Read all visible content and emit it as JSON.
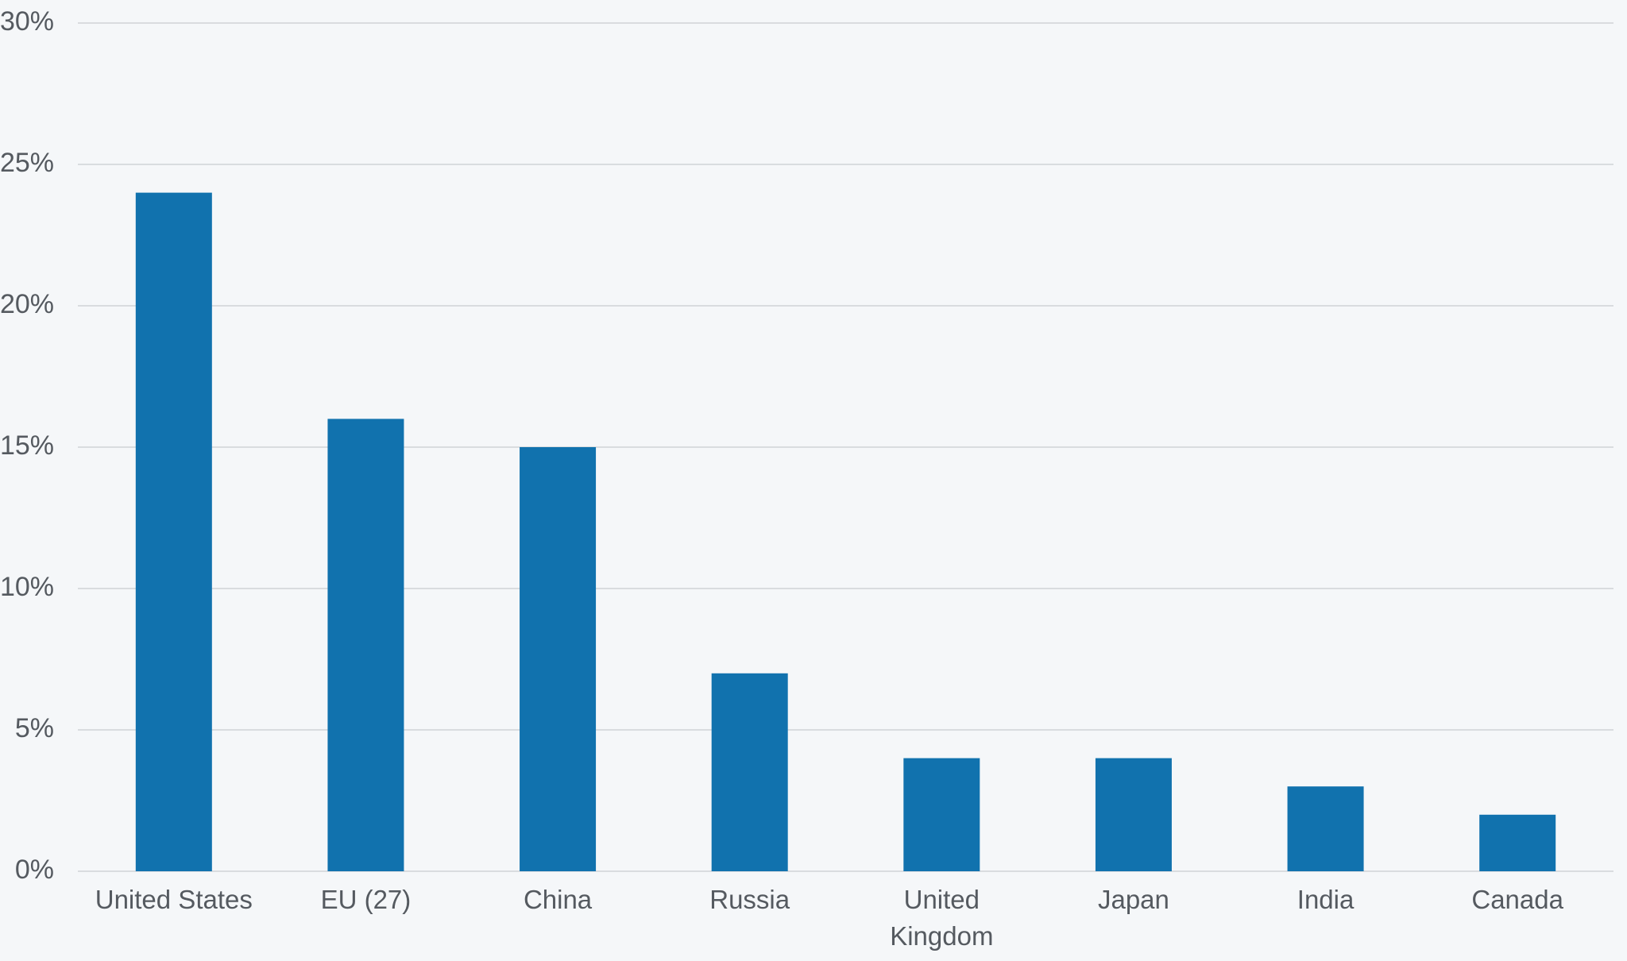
{
  "chart_data": {
    "type": "bar",
    "categories": [
      "United States",
      "EU (27)",
      "China",
      "Russia",
      "United Kingdom",
      "Japan",
      "India",
      "Canada"
    ],
    "values": [
      24,
      16,
      15,
      7,
      4,
      4,
      3,
      2
    ],
    "color": "#1172ae",
    "ylim": [
      0,
      30
    ],
    "yticks": [
      {
        "value": 0,
        "label": "0%"
      },
      {
        "value": 5,
        "label": "5%"
      },
      {
        "value": 10,
        "label": "10%"
      },
      {
        "value": 15,
        "label": "15%"
      },
      {
        "value": 20,
        "label": "20%"
      },
      {
        "value": 25,
        "label": "25%"
      },
      {
        "value": 30,
        "label": "30%"
      }
    ],
    "grid": true
  }
}
